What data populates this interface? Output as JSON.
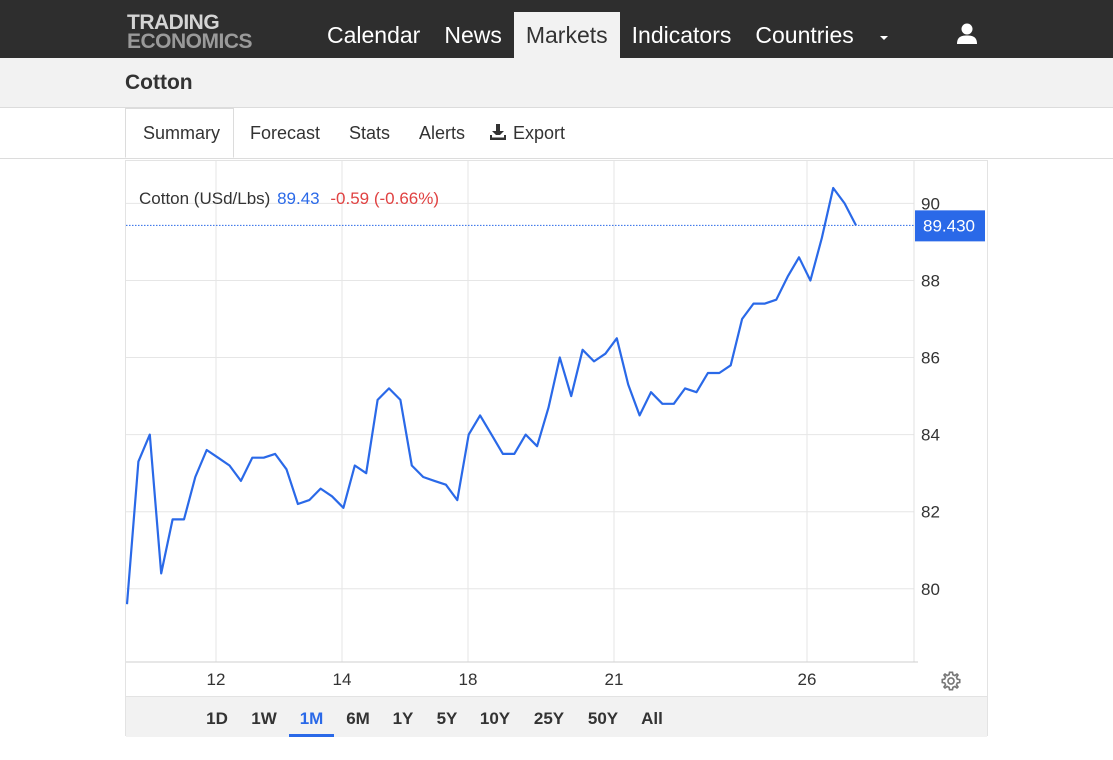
{
  "brand": {
    "line1": "TRADING",
    "line2": "ECONOMICS"
  },
  "nav": {
    "items": [
      {
        "label": "Calendar"
      },
      {
        "label": "News"
      },
      {
        "label": "Markets",
        "active": true
      },
      {
        "label": "Indicators"
      },
      {
        "label": "Countries"
      }
    ],
    "more_icon": "caret-down-icon",
    "user_icon": "user-icon"
  },
  "page": {
    "title": "Cotton"
  },
  "tabs": {
    "summary": "Summary",
    "forecast": "Forecast",
    "stats": "Stats",
    "alerts": "Alerts",
    "export": "Export",
    "export_icon": "download-icon",
    "active": "Summary"
  },
  "quote": {
    "name": "Cotton (USd/Lbs)",
    "last": "89.43",
    "change": "-0.59 (-0.66%)",
    "last_label": "89.430"
  },
  "colors": {
    "line": "#2a69e8",
    "negative": "#e04242",
    "nav_bg": "#2e2e2e"
  },
  "chart_data": {
    "type": "line",
    "x_tick_labels": [
      "12",
      "14",
      "18",
      "21",
      "26"
    ],
    "y_tick_labels": [
      "80",
      "82",
      "84",
      "86",
      "88",
      "90"
    ],
    "ylim": [
      78.1,
      91.1
    ],
    "grid": true,
    "current_value": 89.43,
    "series": [
      {
        "values": [
          79.6,
          83.3,
          84.0,
          80.4,
          81.8,
          81.8,
          82.9,
          83.6,
          83.4,
          83.2,
          82.8,
          83.4,
          83.4,
          83.5,
          83.1,
          82.2,
          82.3,
          82.6,
          82.4,
          82.1,
          83.2,
          83.0,
          84.9,
          85.2,
          84.9,
          83.2,
          82.9,
          82.8,
          82.7,
          82.3,
          84.0,
          84.5,
          84.0,
          83.5,
          83.5,
          84.0,
          83.7,
          84.7,
          86.0,
          85.0,
          86.2,
          85.9,
          86.1,
          86.5,
          85.3,
          84.5,
          85.1,
          84.8,
          84.8,
          85.2,
          85.1,
          85.6,
          85.6,
          85.8,
          87.0,
          87.4,
          87.4,
          87.5,
          88.1,
          88.6,
          88.0,
          89.1,
          90.4,
          90.0,
          89.43
        ]
      }
    ]
  },
  "ranges": {
    "items": [
      "1D",
      "1W",
      "1M",
      "6M",
      "1Y",
      "5Y",
      "10Y",
      "25Y",
      "50Y",
      "All"
    ],
    "active": "1M"
  },
  "settings_icon": "gear-icon"
}
